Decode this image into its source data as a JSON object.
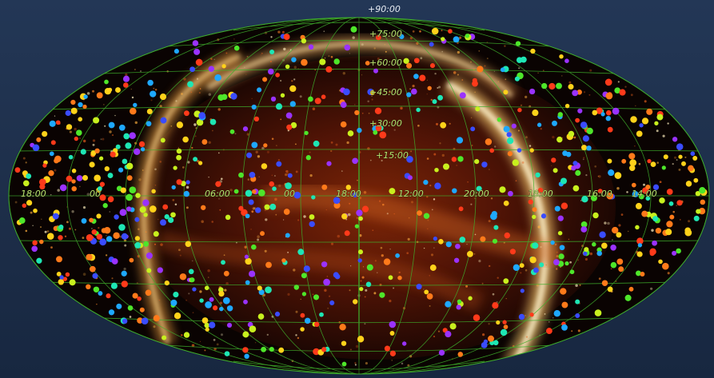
{
  "view": {
    "projection": "Aitoff (all-sky)",
    "background_color": "#1d2e49",
    "grid_color": "#3fae2c",
    "label_color": "#b7e36a"
  },
  "grid_labels": {
    "pole": "+90:00",
    "latitudes": [
      "+75:00",
      "+60:00",
      "+45:00",
      "+30:00",
      "+15:00"
    ],
    "longitudes": [
      "18:00",
      "00",
      "06:00",
      "00",
      "18:00",
      "12:00",
      "20:00",
      "18:00",
      "16:00",
      "14:00"
    ]
  },
  "sources": {
    "count_note": "",
    "palette": [
      "#ff3a1a",
      "#ff7a1a",
      "#ffd21a",
      "#c8f01e",
      "#4ee62a",
      "#1ee6b4",
      "#1ea8ff",
      "#3a4cff",
      "#9a32ff"
    ]
  }
}
